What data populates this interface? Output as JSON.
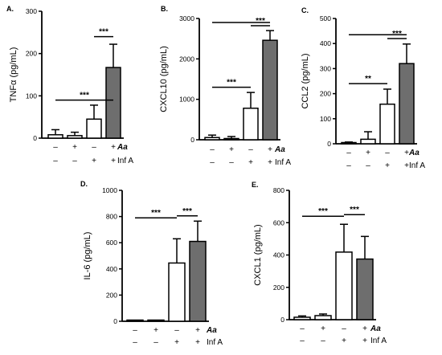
{
  "colors": {
    "control": "#ffffff",
    "treated": "#6e6e6e",
    "axis": "#000000"
  },
  "conditions": {
    "row1": {
      "label": "Aa",
      "marks": [
        "–",
        "+",
        "–",
        "+"
      ]
    },
    "row2": {
      "label": "Inf A",
      "marks": [
        "–",
        "–",
        "+",
        "+"
      ]
    }
  },
  "chart_data": [
    {
      "type": "bar",
      "panel": "A.",
      "ylabel": "TNFα (pg/mL)",
      "ylim": [
        0,
        300
      ],
      "yticks": [
        "0",
        "100",
        "200",
        "300"
      ],
      "values": [
        8,
        6,
        45,
        167
      ],
      "errors": [
        12,
        8,
        33,
        55
      ],
      "fills": [
        "control",
        "control",
        "control",
        "treated"
      ],
      "significance": [
        {
          "from": 0,
          "to": 3,
          "level": 90,
          "label": "***"
        },
        {
          "from": 2,
          "to": 3,
          "level": 240,
          "label": "***"
        }
      ]
    },
    {
      "type": "bar",
      "panel": "B.",
      "ylabel": "CXCL10 (pg/mL)",
      "ylim": [
        0,
        3000
      ],
      "yticks": [
        "0",
        "1000",
        "2000",
        "3000"
      ],
      "values": [
        55,
        30,
        780,
        2460
      ],
      "errors": [
        60,
        50,
        390,
        240
      ],
      "fills": [
        "control",
        "control",
        "control",
        "treated"
      ],
      "significance": [
        {
          "from": 0,
          "to": 2,
          "level": 1300,
          "label": "***"
        },
        {
          "from": 2,
          "to": 3,
          "level": 2820,
          "label": "***"
        },
        {
          "from": 0,
          "to": 3,
          "level": 2900,
          "label": ""
        }
      ]
    },
    {
      "type": "bar",
      "panel": "C.",
      "ylabel": "CCL2 (pg/mL)",
      "ylim": [
        0,
        500
      ],
      "yticks": [
        "0",
        "100",
        "200",
        "300",
        "400",
        "500"
      ],
      "values": [
        3,
        18,
        158,
        320
      ],
      "errors": [
        4,
        30,
        60,
        78
      ],
      "fills": [
        "control",
        "control",
        "control",
        "treated"
      ],
      "significance": [
        {
          "from": 0,
          "to": 2,
          "level": 240,
          "label": "**"
        },
        {
          "from": 2,
          "to": 3,
          "level": 420,
          "label": "***"
        },
        {
          "from": 0,
          "to": 3,
          "level": 435,
          "label": ""
        }
      ]
    },
    {
      "type": "bar",
      "panel": "D.",
      "ylabel": "IL-6 (pg/mL)",
      "ylim": [
        0,
        1000
      ],
      "yticks": [
        "0",
        "200",
        "400",
        "600",
        "800",
        "1000"
      ],
      "values": [
        3,
        3,
        445,
        610
      ],
      "errors": [
        4,
        4,
        185,
        155
      ],
      "fills": [
        "control",
        "control",
        "control",
        "treated"
      ],
      "significance": [
        {
          "from": 0,
          "to": 2,
          "level": 790,
          "label": "***"
        },
        {
          "from": 2,
          "to": 3,
          "level": 805,
          "label": "***"
        }
      ]
    },
    {
      "type": "bar",
      "panel": "E.",
      "ylabel": "CXCL1 (pg/mL)",
      "ylim": [
        0,
        800
      ],
      "yticks": [
        "0",
        "200",
        "400",
        "600",
        "800"
      ],
      "values": [
        15,
        25,
        418,
        375
      ],
      "errors": [
        8,
        10,
        172,
        140
      ],
      "fills": [
        "control",
        "control",
        "control",
        "treated"
      ],
      "significance": [
        {
          "from": 0,
          "to": 2,
          "level": 640,
          "label": "***"
        },
        {
          "from": 2,
          "to": 3,
          "level": 650,
          "label": "***"
        }
      ]
    }
  ]
}
